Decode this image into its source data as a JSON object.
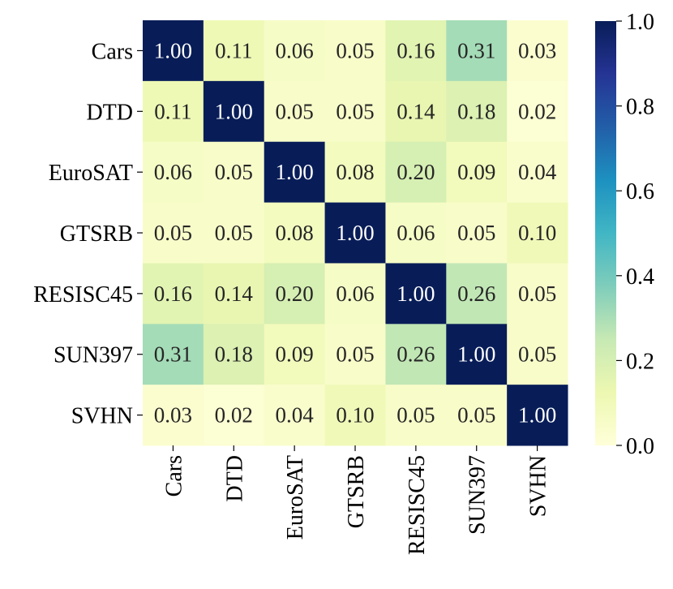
{
  "chart_data": {
    "type": "heatmap",
    "title": "",
    "xlabel": "",
    "ylabel": "",
    "rows": [
      "Cars",
      "DTD",
      "EuroSAT",
      "GTSRB",
      "RESISC45",
      "SUN397",
      "SVHN"
    ],
    "columns": [
      "Cars",
      "DTD",
      "EuroSAT",
      "GTSRB",
      "RESISC45",
      "SUN397",
      "SVHN"
    ],
    "values": [
      [
        1.0,
        0.11,
        0.06,
        0.05,
        0.16,
        0.31,
        0.03
      ],
      [
        0.11,
        1.0,
        0.05,
        0.05,
        0.14,
        0.18,
        0.02
      ],
      [
        0.06,
        0.05,
        1.0,
        0.08,
        0.2,
        0.09,
        0.04
      ],
      [
        0.05,
        0.05,
        0.08,
        1.0,
        0.06,
        0.05,
        0.1
      ],
      [
        0.16,
        0.14,
        0.2,
        0.06,
        1.0,
        0.26,
        0.05
      ],
      [
        0.31,
        0.18,
        0.09,
        0.05,
        0.26,
        1.0,
        0.05
      ],
      [
        0.03,
        0.02,
        0.04,
        0.1,
        0.05,
        0.05,
        1.0
      ]
    ],
    "value_format": "0.00",
    "colormap": "YlGnBu",
    "colormap_stops": [
      "#ffffd9",
      "#edf8b1",
      "#c7e9b4",
      "#7fcdbb",
      "#41b6c4",
      "#1d91c0",
      "#225ea8",
      "#253494",
      "#081d58"
    ],
    "colorbar": {
      "range": [
        0.0,
        1.0
      ],
      "ticks": [
        "0.0",
        "0.2",
        "0.4",
        "0.6",
        "0.8",
        "1.0"
      ]
    },
    "annotation_colors": {
      "dark": "#262626",
      "light": "#ffffff"
    }
  }
}
